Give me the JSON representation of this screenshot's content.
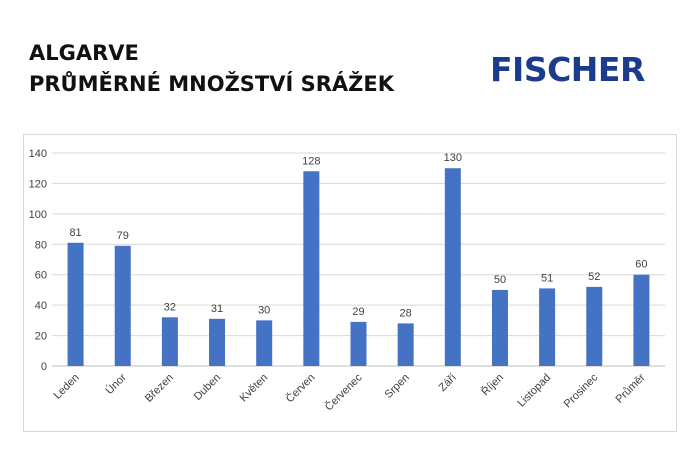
{
  "header": {
    "title_line1": "ALGARVE",
    "title_line2": "PRŮMĚRNÉ MNOŽSTVÍ SRÁŽEK",
    "brand": "FISCHER"
  },
  "colors": {
    "bar": "#4472c4",
    "brand": "#1b3c8c",
    "grid": "#d9d9d9"
  },
  "chart_data": {
    "type": "bar",
    "categories": [
      "Leden",
      "Únor",
      "Březen",
      "Duben",
      "Květen",
      "Červen",
      "Červenec",
      "Srpen",
      "Září",
      "Říjen",
      "Listopad",
      "Prosinec",
      "Průměr"
    ],
    "values": [
      81,
      79,
      32,
      31,
      30,
      128,
      29,
      28,
      130,
      50,
      51,
      52,
      60
    ],
    "ylim": [
      0,
      140
    ],
    "yticks": [
      0,
      20,
      40,
      60,
      80,
      100,
      120,
      140
    ],
    "grid": true,
    "legend": "none",
    "data_labels": true
  }
}
